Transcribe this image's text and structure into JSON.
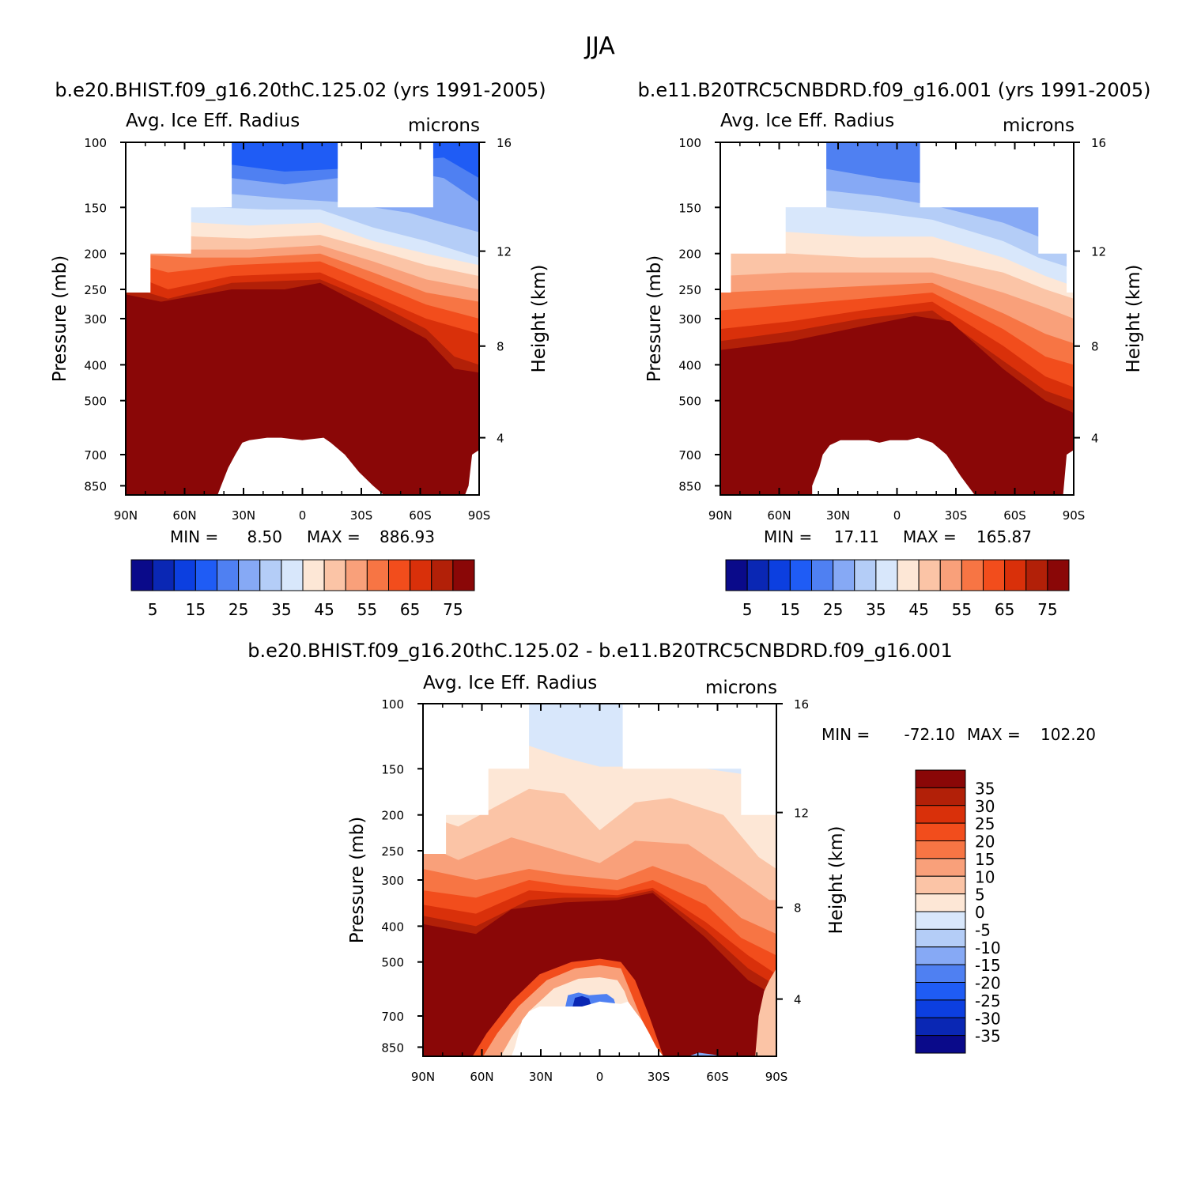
{
  "title": "JJA",
  "colors": {
    "abs": [
      "#0a0a8a",
      "#0a27b4",
      "#0c3fe0",
      "#1f5cf5",
      "#4f80f2",
      "#86a9f5",
      "#b4cdf7",
      "#d8e7fb",
      "#fde7d6",
      "#fbc4a6",
      "#f9a07a",
      "#f77544",
      "#f24d1c",
      "#d9300a",
      "#b22008",
      "#8a0707"
    ],
    "diff": [
      "#0a0a8a",
      "#0a27b4",
      "#0c3fe0",
      "#1f5cf5",
      "#4f80f2",
      "#86a9f5",
      "#b4cdf7",
      "#d8e7fb",
      "#fde7d6",
      "#fbc4a6",
      "#f9a07a",
      "#f77544",
      "#f24d1c",
      "#d9300a",
      "#b22008",
      "#8a0707"
    ]
  },
  "panels": [
    {
      "id": "case1",
      "run_label": "b.e20.BHIST.f09_g16.20thC.125.02 (yrs 1991-2005)",
      "variable": "Avg. Ice Eff. Radius",
      "units": "microns",
      "min_label": "MIN =",
      "min_value": "8.50",
      "max_label": "MAX =",
      "max_value": "886.93",
      "levels": [
        5,
        10,
        15,
        20,
        25,
        30,
        35,
        40,
        45,
        50,
        55,
        60,
        65,
        70,
        75
      ],
      "colorbar_labels": [
        "5",
        "15",
        "25",
        "35",
        "45",
        "55",
        "65",
        "75"
      ],
      "profile": [
        [
          0.0,
          null,
          null,
          255,
          null
        ],
        [
          0.07,
          null,
          null,
          205,
          null
        ],
        [
          0.18,
          null,
          null,
          200,
          null
        ],
        [
          0.3,
          null,
          150,
          190,
          100
        ],
        [
          0.4,
          700,
          150,
          240,
          100
        ],
        [
          0.5,
          620,
          150,
          270,
          100
        ],
        [
          0.6,
          620,
          150,
          300,
          100
        ],
        [
          0.75,
          880,
          150,
          340,
          100
        ],
        [
          0.9,
          850,
          100,
          400,
          100
        ],
        [
          1.0,
          720,
          100,
          520,
          100
        ]
      ]
    },
    {
      "id": "case2",
      "run_label": "b.e11.B20TRC5CNBDRD.f09_g16.001 (yrs 1991-2005)",
      "variable": "Avg. Ice Eff. Radius",
      "units": "microns",
      "min_label": "MIN =",
      "min_value": "17.11",
      "max_label": "MAX = ",
      "max_value": "165.87",
      "levels": [
        5,
        10,
        15,
        20,
        25,
        30,
        35,
        40,
        45,
        50,
        55,
        60,
        65,
        70,
        75
      ],
      "colorbar_labels": [
        "5",
        "15",
        "25",
        "35",
        "45",
        "55",
        "65",
        "75"
      ]
    },
    {
      "id": "diff",
      "run_label": "b.e20.BHIST.f09_g16.20thC.125.02 - b.e11.B20TRC5CNBDRD.f09_g16.001",
      "variable": "Avg. Ice Eff. Radius",
      "units": "microns",
      "min_label": "MIN =",
      "min_value": "-72.10",
      "max_label": "MAX =",
      "max_value": "102.20",
      "levels": [
        -35,
        -30,
        -25,
        -20,
        -15,
        -10,
        -5,
        0,
        5,
        10,
        15,
        20,
        25,
        30,
        35
      ],
      "colorbar_labels": [
        "35",
        "30",
        "25",
        "20",
        "15",
        "10",
        "5",
        "0",
        "-5",
        "-10",
        "-15",
        "-20",
        "-25",
        "-30",
        "-35"
      ]
    }
  ],
  "axes": {
    "x_ticks": [
      "90N",
      "60N",
      "30N",
      "0",
      "30S",
      "60S",
      "90S"
    ],
    "pressure_ticks": [
      "100",
      "150",
      "200",
      "250",
      "300",
      "400",
      "500",
      "700",
      "850"
    ],
    "height_ticks": [
      "16",
      "12",
      "8",
      "4"
    ],
    "ylabel_left": "Pressure (mb)",
    "ylabel_right": "Height (km)"
  },
  "chart_data": [
    {
      "type": "heatmap",
      "title": "b.e20.BHIST.f09_g16.20thC.125.02 (yrs 1991-2005)",
      "subtitle": "Avg. Ice Eff. Radius (microns), JJA",
      "x": [
        "90N",
        "60N",
        "30N",
        "0",
        "30S",
        "60S",
        "90S"
      ],
      "y": [
        100,
        150,
        200,
        250,
        300,
        400,
        500,
        700,
        850
      ],
      "xlabel": "",
      "ylabel": "Pressure (mb)",
      "y2label": "Height (km)",
      "levels": [
        5,
        10,
        15,
        20,
        25,
        30,
        35,
        40,
        45,
        50,
        55,
        60,
        65,
        70,
        75
      ],
      "min": 8.5,
      "max": 886.93
    },
    {
      "type": "heatmap",
      "title": "b.e11.B20TRC5CNBDRD.f09_g16.001 (yrs 1991-2005)",
      "subtitle": "Avg. Ice Eff. Radius (microns), JJA",
      "x": [
        "90N",
        "60N",
        "30N",
        "0",
        "30S",
        "60S",
        "90S"
      ],
      "y": [
        100,
        150,
        200,
        250,
        300,
        400,
        500,
        700,
        850
      ],
      "xlabel": "",
      "ylabel": "Pressure (mb)",
      "y2label": "Height (km)",
      "levels": [
        5,
        10,
        15,
        20,
        25,
        30,
        35,
        40,
        45,
        50,
        55,
        60,
        65,
        70,
        75
      ],
      "min": 17.11,
      "max": 165.87
    },
    {
      "type": "heatmap",
      "title": "b.e20.BHIST.f09_g16.20thC.125.02 - b.e11.B20TRC5CNBDRD.f09_g16.001",
      "subtitle": "Avg. Ice Eff. Radius (microns), JJA difference",
      "x": [
        "90N",
        "60N",
        "30N",
        "0",
        "30S",
        "60S",
        "90S"
      ],
      "y": [
        100,
        150,
        200,
        250,
        300,
        400,
        500,
        700,
        850
      ],
      "xlabel": "",
      "ylabel": "Pressure (mb)",
      "y2label": "Height (km)",
      "levels": [
        -35,
        -30,
        -25,
        -20,
        -15,
        -10,
        -5,
        0,
        5,
        10,
        15,
        20,
        25,
        30,
        35
      ],
      "min": -72.1,
      "max": 102.2
    }
  ]
}
